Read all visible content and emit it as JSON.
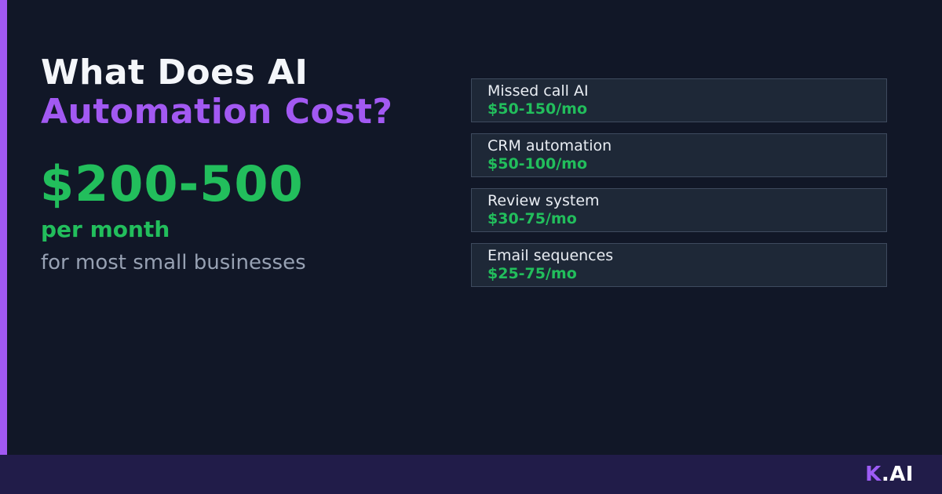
{
  "theme": {
    "background": "#111727",
    "accent_purple": "#a259f2",
    "green": "#22be5c",
    "card_background": "#1e2837",
    "card_border": "#3e4a5e",
    "muted_gray": "#97a1b3",
    "footer_background": "#211c49",
    "white": "#f4f6fa"
  },
  "header": {
    "title_line1": "What Does AI",
    "title_line2": "Automation Cost?"
  },
  "price": {
    "amount": "$200-500",
    "period": "per month",
    "note": "for most small businesses"
  },
  "services": [
    {
      "label": "Missed call AI",
      "price": "$50-150/mo"
    },
    {
      "label": "CRM automation",
      "price": "$50-100/mo"
    },
    {
      "label": "Review system",
      "price": "$30-75/mo"
    },
    {
      "label": "Email sequences",
      "price": "$25-75/mo"
    }
  ],
  "footer": {
    "brand_k": "K",
    "brand_rest": ".AI"
  }
}
